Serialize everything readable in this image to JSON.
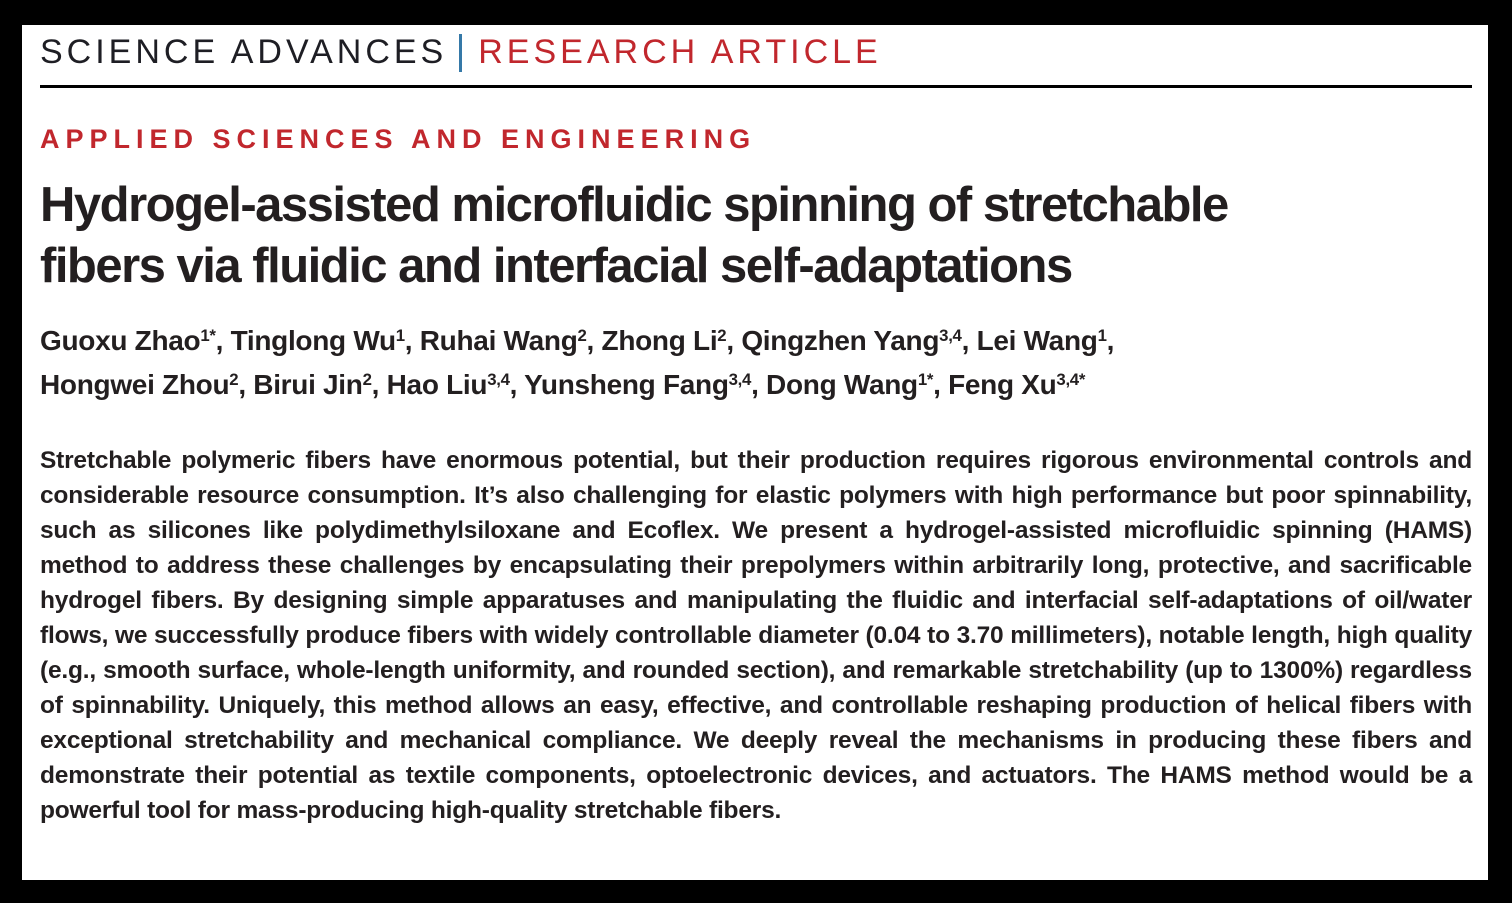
{
  "journal_header": {
    "journal": "SCIENCE ADVANCES",
    "article_type": "RESEARCH ARTICLE"
  },
  "category": "APPLIED SCIENCES AND ENGINEERING",
  "title_lines": [
    "Hydrogel-assisted microfluidic spinning of stretchable",
    "fibers via fluidic and interfacial self-adaptations"
  ],
  "authors": {
    "lines": [
      {
        "items": [
          {
            "name": "Guoxu Zhao",
            "sup": "1*"
          },
          {
            "name": "Tinglong Wu",
            "sup": "1"
          },
          {
            "name": "Ruhai Wang",
            "sup": "2"
          },
          {
            "name": "Zhong Li",
            "sup": "2"
          },
          {
            "name": "Qingzhen Yang",
            "sup": "3,4"
          },
          {
            "name": "Lei Wang",
            "sup": "1"
          }
        ],
        "trailing": ","
      },
      {
        "items": [
          {
            "name": "Hongwei Zhou",
            "sup": "2"
          },
          {
            "name": "Birui Jin",
            "sup": "2"
          },
          {
            "name": "Hao Liu",
            "sup": "3,4"
          },
          {
            "name": "Yunsheng Fang",
            "sup": "3,4"
          },
          {
            "name": "Dong Wang",
            "sup": "1*"
          },
          {
            "name": "Feng Xu",
            "sup": "3,4*"
          }
        ],
        "trailing": ""
      }
    ]
  },
  "abstract": "Stretchable polymeric fibers have enormous potential, but their production requires rigorous environmental controls and considerable resource consumption. It’s also challenging for elastic polymers with high performance but poor spinnability, such as silicones like polydimethylsiloxane and Ecoflex. We present a hydrogel-assisted microfluidic spinning (HAMS) method to address these challenges by encapsulating their prepolymers within arbitrarily long, protective, and sacrificable hydrogel fibers. By designing simple apparatuses and manipulating the fluidic and interfacial self-adaptations of oil/water flows, we successfully produce fibers with widely controllable diameter (0.04 to 3.70 millimeters), notable length, high quality (e.g., smooth surface, whole-length uniformity, and rounded section), and remarkable stretchability (up to 1300%) regardless of spinnability. Uniquely, this method allows an easy, effective, and controllable reshaping production of helical fibers with exceptional stretchability and mechanical compliance. We deeply reveal the mechanisms in producing these fibers and demonstrate their potential as textile components, optoelectronic devices, and actuators. The HAMS method would be a powerful tool for mass-producing high-quality stretchable fibers.",
  "colors": {
    "accent_red": "#c1272d",
    "pipe_blue": "#3579a8",
    "text": "#231f20"
  }
}
